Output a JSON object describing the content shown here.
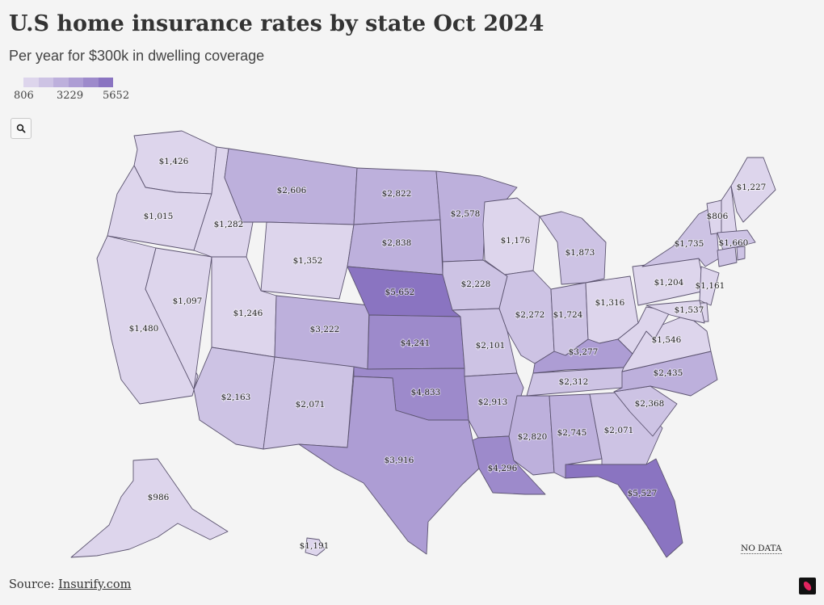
{
  "header": {
    "title": "U.S home insurance rates by state Oct 2024",
    "subtitle": "Per year for $300k in dwelling coverage"
  },
  "legend": {
    "min_label": "806",
    "mid_label": "3229",
    "max_label": "5652",
    "colors": [
      "#ddd5ec",
      "#cdc3e4",
      "#bdb0dc",
      "#ad9dd4",
      "#9d8acb",
      "#8a74c1"
    ]
  },
  "controls": {
    "zoom_icon": "search-icon"
  },
  "map": {
    "nodata_label": "NO DATA",
    "scale_min": 806,
    "scale_max": 5652,
    "states": [
      {
        "id": "WA",
        "label": "$1,426",
        "value": 1426
      },
      {
        "id": "OR",
        "label": "$1,015",
        "value": 1015
      },
      {
        "id": "CA",
        "label": "$1,480",
        "value": 1480
      },
      {
        "id": "NV",
        "label": "$1,097",
        "value": 1097
      },
      {
        "id": "ID",
        "label": "$1,282",
        "value": 1282
      },
      {
        "id": "MT",
        "label": "$2,606",
        "value": 2606
      },
      {
        "id": "WY",
        "label": "$1,352",
        "value": 1352
      },
      {
        "id": "UT",
        "label": "$1,246",
        "value": 1246
      },
      {
        "id": "AZ",
        "label": "$2,163",
        "value": 2163
      },
      {
        "id": "CO",
        "label": "$3,222",
        "value": 3222
      },
      {
        "id": "NM",
        "label": "$2,071",
        "value": 2071
      },
      {
        "id": "ND",
        "label": "$2,822",
        "value": 2822
      },
      {
        "id": "SD",
        "label": "$2,838",
        "value": 2838
      },
      {
        "id": "NE",
        "label": "$5,652",
        "value": 5652
      },
      {
        "id": "KS",
        "label": "$4,241",
        "value": 4241
      },
      {
        "id": "OK",
        "label": "$4,833",
        "value": 4833
      },
      {
        "id": "TX",
        "label": "$3,916",
        "value": 3916
      },
      {
        "id": "MN",
        "label": "$2,578",
        "value": 2578
      },
      {
        "id": "IA",
        "label": "$2,228",
        "value": 2228
      },
      {
        "id": "MO",
        "label": "$2,101",
        "value": 2101
      },
      {
        "id": "AR",
        "label": "$2,913",
        "value": 2913
      },
      {
        "id": "LA",
        "label": "$4,296",
        "value": 4296
      },
      {
        "id": "WI",
        "label": "$1,176",
        "value": 1176
      },
      {
        "id": "IL",
        "label": "$2,272",
        "value": 2272
      },
      {
        "id": "MI",
        "label": "$1,873",
        "value": 1873
      },
      {
        "id": "IN",
        "label": "$1,724",
        "value": 1724
      },
      {
        "id": "OH",
        "label": "$1,316",
        "value": 1316
      },
      {
        "id": "KY",
        "label": "$3,277",
        "value": 3277
      },
      {
        "id": "TN",
        "label": "$2,312",
        "value": 2312
      },
      {
        "id": "MS",
        "label": "$2,820",
        "value": 2820
      },
      {
        "id": "AL",
        "label": "$2,745",
        "value": 2745
      },
      {
        "id": "GA",
        "label": "$2,071",
        "value": 2071
      },
      {
        "id": "FL",
        "label": "$5,527",
        "value": 5527
      },
      {
        "id": "SC",
        "label": "$2,368",
        "value": 2368
      },
      {
        "id": "NC",
        "label": "$2,435",
        "value": 2435
      },
      {
        "id": "VA",
        "label": "$1,546",
        "value": 1546
      },
      {
        "id": "WV",
        "label": "",
        "value": 1400
      },
      {
        "id": "PA",
        "label": "$1,204",
        "value": 1204
      },
      {
        "id": "NY",
        "label": "$1,735",
        "value": 1735
      },
      {
        "id": "VT",
        "label": "$806",
        "value": 806
      },
      {
        "id": "NH",
        "label": "",
        "value": 1100
      },
      {
        "id": "ME",
        "label": "$1,227",
        "value": 1227
      },
      {
        "id": "MA",
        "label": "$1,660",
        "value": 1660
      },
      {
        "id": "CT",
        "label": "",
        "value": 1800
      },
      {
        "id": "RI",
        "label": "",
        "value": 1700
      },
      {
        "id": "NJ",
        "label": "$1,161",
        "value": 1161
      },
      {
        "id": "DE",
        "label": "",
        "value": 1000
      },
      {
        "id": "MD",
        "label": "$1,537",
        "value": 1537
      },
      {
        "id": "AK",
        "label": "$986",
        "value": 986
      },
      {
        "id": "HI",
        "label": "$1,191",
        "value": 1191
      }
    ]
  },
  "footer": {
    "source_prefix": "Source:",
    "source_link": "Insurify.com"
  }
}
